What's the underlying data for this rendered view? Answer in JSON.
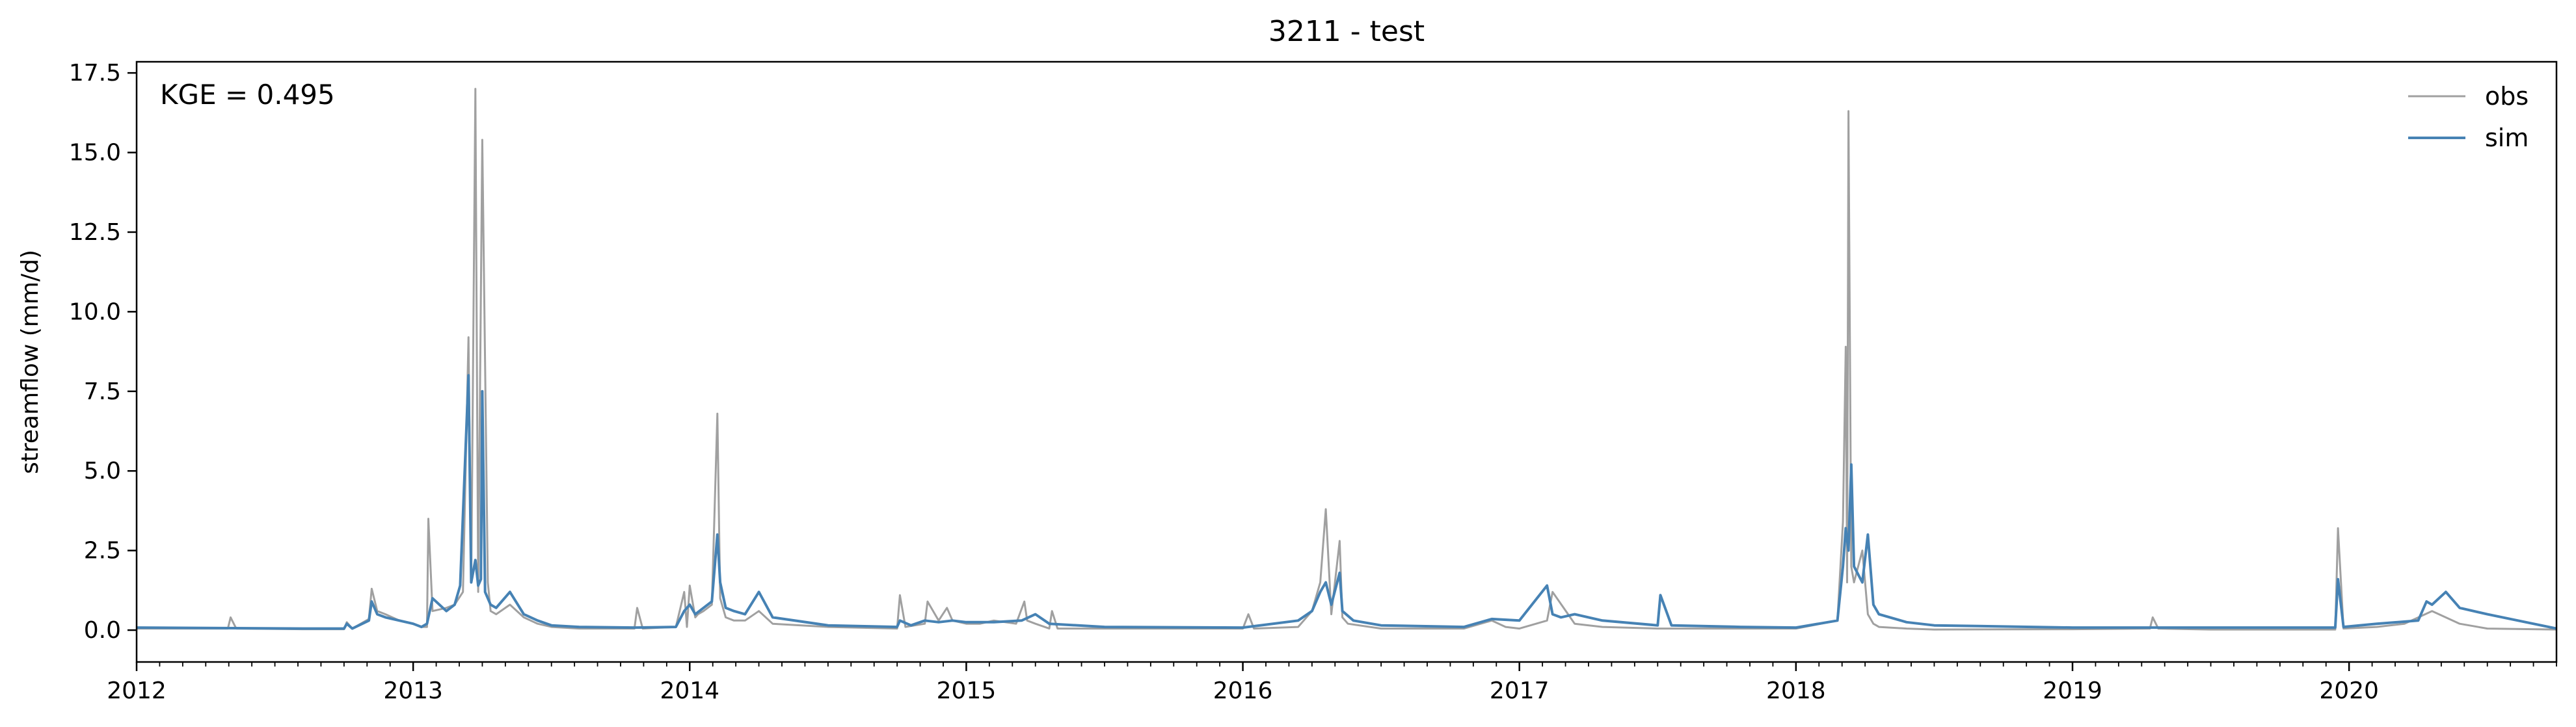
{
  "chart_data": {
    "type": "line",
    "title": "3211 - test",
    "xlabel": "",
    "ylabel": "streamflow (mm/d)",
    "annotation": "KGE = 0.495",
    "xlim": [
      2012.0,
      2020.75
    ],
    "ylim": [
      -1.0,
      17.85
    ],
    "x_ticks": [
      "2012",
      "2013",
      "2014",
      "2015",
      "2016",
      "2017",
      "2018",
      "2019",
      "2020"
    ],
    "y_ticks": [
      "0.0",
      "2.5",
      "5.0",
      "7.5",
      "10.0",
      "12.5",
      "15.0",
      "17.5"
    ],
    "grid": false,
    "legend_position": "top-right",
    "series": [
      {
        "name": "obs",
        "color": "#a0a0a0",
        "x": [
          2012.0,
          2012.33,
          2012.34,
          2012.36,
          2012.6,
          2012.75,
          2012.76,
          2012.78,
          2012.84,
          2012.85,
          2012.87,
          2012.9,
          2012.95,
          2013.0,
          2013.03,
          2013.05,
          2013.055,
          2013.07,
          2013.12,
          2013.15,
          2013.18,
          2013.2,
          2013.21,
          2013.225,
          2013.235,
          2013.25,
          2013.27,
          2013.28,
          2013.3,
          2013.35,
          2013.4,
          2013.45,
          2013.5,
          2013.6,
          2013.8,
          2013.81,
          2013.83,
          2013.95,
          2013.98,
          2013.99,
          2014.0,
          2014.02,
          2014.03,
          2014.05,
          2014.08,
          2014.1,
          2014.11,
          2014.13,
          2014.16,
          2014.2,
          2014.25,
          2014.3,
          2014.5,
          2014.75,
          2014.76,
          2014.78,
          2014.85,
          2014.86,
          2014.9,
          2014.93,
          2014.95,
          2015.0,
          2015.05,
          2015.1,
          2015.18,
          2015.21,
          2015.22,
          2015.25,
          2015.3,
          2015.31,
          2015.33,
          2015.5,
          2016.0,
          2016.02,
          2016.04,
          2016.2,
          2016.25,
          2016.28,
          2016.3,
          2016.32,
          2016.35,
          2016.36,
          2016.38,
          2016.5,
          2016.8,
          2016.9,
          2016.95,
          2017.0,
          2017.1,
          2017.12,
          2017.2,
          2017.3,
          2017.5,
          2017.8,
          2018.0,
          2018.15,
          2018.17,
          2018.18,
          2018.185,
          2018.19,
          2018.2,
          2018.21,
          2018.24,
          2018.26,
          2018.28,
          2018.3,
          2018.4,
          2018.5,
          2019.0,
          2019.28,
          2019.29,
          2019.31,
          2019.5,
          2019.95,
          2019.96,
          2019.98,
          2020.1,
          2020.2,
          2020.3,
          2020.4,
          2020.5,
          2020.75
        ],
        "y": [
          0.05,
          0.05,
          0.4,
          0.05,
          0.03,
          0.03,
          0.25,
          0.05,
          0.35,
          1.3,
          0.6,
          0.5,
          0.3,
          0.2,
          0.1,
          0.1,
          3.5,
          0.6,
          0.7,
          0.8,
          1.2,
          9.2,
          1.5,
          17.0,
          1.2,
          15.4,
          1.5,
          0.6,
          0.5,
          0.8,
          0.4,
          0.2,
          0.1,
          0.05,
          0.05,
          0.7,
          0.05,
          0.1,
          1.2,
          0.1,
          1.4,
          0.4,
          0.5,
          0.6,
          0.8,
          6.8,
          1.0,
          0.4,
          0.3,
          0.3,
          0.6,
          0.2,
          0.1,
          0.05,
          1.1,
          0.1,
          0.2,
          0.9,
          0.3,
          0.7,
          0.3,
          0.2,
          0.2,
          0.3,
          0.2,
          0.9,
          0.3,
          0.2,
          0.05,
          0.6,
          0.05,
          0.05,
          0.05,
          0.5,
          0.05,
          0.1,
          0.6,
          1.5,
          3.8,
          0.5,
          2.8,
          0.4,
          0.2,
          0.05,
          0.05,
          0.3,
          0.1,
          0.05,
          0.3,
          1.2,
          0.2,
          0.1,
          0.05,
          0.05,
          0.05,
          0.3,
          3.4,
          8.9,
          1.5,
          16.3,
          2.0,
          1.5,
          2.5,
          0.5,
          0.2,
          0.1,
          0.05,
          0.02,
          0.03,
          0.05,
          0.4,
          0.05,
          0.02,
          0.02,
          3.2,
          0.05,
          0.1,
          0.2,
          0.6,
          0.2,
          0.05,
          0.02
        ]
      },
      {
        "name": "sim",
        "color": "#4682b4",
        "x": [
          2012.0,
          2012.6,
          2012.75,
          2012.76,
          2012.78,
          2012.84,
          2012.85,
          2012.87,
          2012.9,
          2012.95,
          2013.0,
          2013.03,
          2013.05,
          2013.07,
          2013.12,
          2013.15,
          2013.17,
          2013.2,
          2013.21,
          2013.225,
          2013.235,
          2013.245,
          2013.25,
          2013.26,
          2013.28,
          2013.3,
          2013.35,
          2013.4,
          2013.45,
          2013.5,
          2013.6,
          2013.8,
          2013.95,
          2013.98,
          2014.0,
          2014.02,
          2014.05,
          2014.08,
          2014.1,
          2014.11,
          2014.13,
          2014.16,
          2014.2,
          2014.25,
          2014.3,
          2014.5,
          2014.75,
          2014.76,
          2014.8,
          2014.85,
          2014.9,
          2014.95,
          2015.0,
          2015.1,
          2015.2,
          2015.25,
          2015.3,
          2015.5,
          2016.0,
          2016.2,
          2016.25,
          2016.28,
          2016.3,
          2016.32,
          2016.35,
          2016.36,
          2016.4,
          2016.5,
          2016.8,
          2016.9,
          2017.0,
          2017.1,
          2017.12,
          2017.15,
          2017.2,
          2017.3,
          2017.5,
          2017.51,
          2017.55,
          2017.8,
          2018.0,
          2018.15,
          2018.17,
          2018.18,
          2018.19,
          2018.2,
          2018.21,
          2018.24,
          2018.26,
          2018.28,
          2018.3,
          2018.4,
          2018.5,
          2019.0,
          2019.5,
          2019.95,
          2019.96,
          2019.98,
          2020.1,
          2020.25,
          2020.28,
          2020.3,
          2020.35,
          2020.4,
          2020.5,
          2020.75
        ],
        "y": [
          0.08,
          0.05,
          0.05,
          0.2,
          0.05,
          0.3,
          0.9,
          0.5,
          0.4,
          0.3,
          0.2,
          0.1,
          0.2,
          1.0,
          0.6,
          0.8,
          1.4,
          8.0,
          1.5,
          2.2,
          1.4,
          1.6,
          7.5,
          1.2,
          0.8,
          0.7,
          1.2,
          0.5,
          0.3,
          0.15,
          0.1,
          0.08,
          0.1,
          0.6,
          0.8,
          0.5,
          0.7,
          0.9,
          3.0,
          1.5,
          0.7,
          0.6,
          0.5,
          1.2,
          0.4,
          0.15,
          0.1,
          0.3,
          0.15,
          0.3,
          0.25,
          0.3,
          0.25,
          0.25,
          0.3,
          0.5,
          0.2,
          0.1,
          0.08,
          0.3,
          0.6,
          1.2,
          1.5,
          0.8,
          1.8,
          0.6,
          0.3,
          0.15,
          0.1,
          0.35,
          0.3,
          1.4,
          0.5,
          0.4,
          0.5,
          0.3,
          0.15,
          1.1,
          0.15,
          0.1,
          0.08,
          0.3,
          2.0,
          3.2,
          2.5,
          5.2,
          2.0,
          1.5,
          3.0,
          0.8,
          0.5,
          0.25,
          0.15,
          0.08,
          0.08,
          0.08,
          1.6,
          0.1,
          0.2,
          0.3,
          0.9,
          0.8,
          1.2,
          0.7,
          0.5,
          0.05
        ]
      }
    ]
  }
}
